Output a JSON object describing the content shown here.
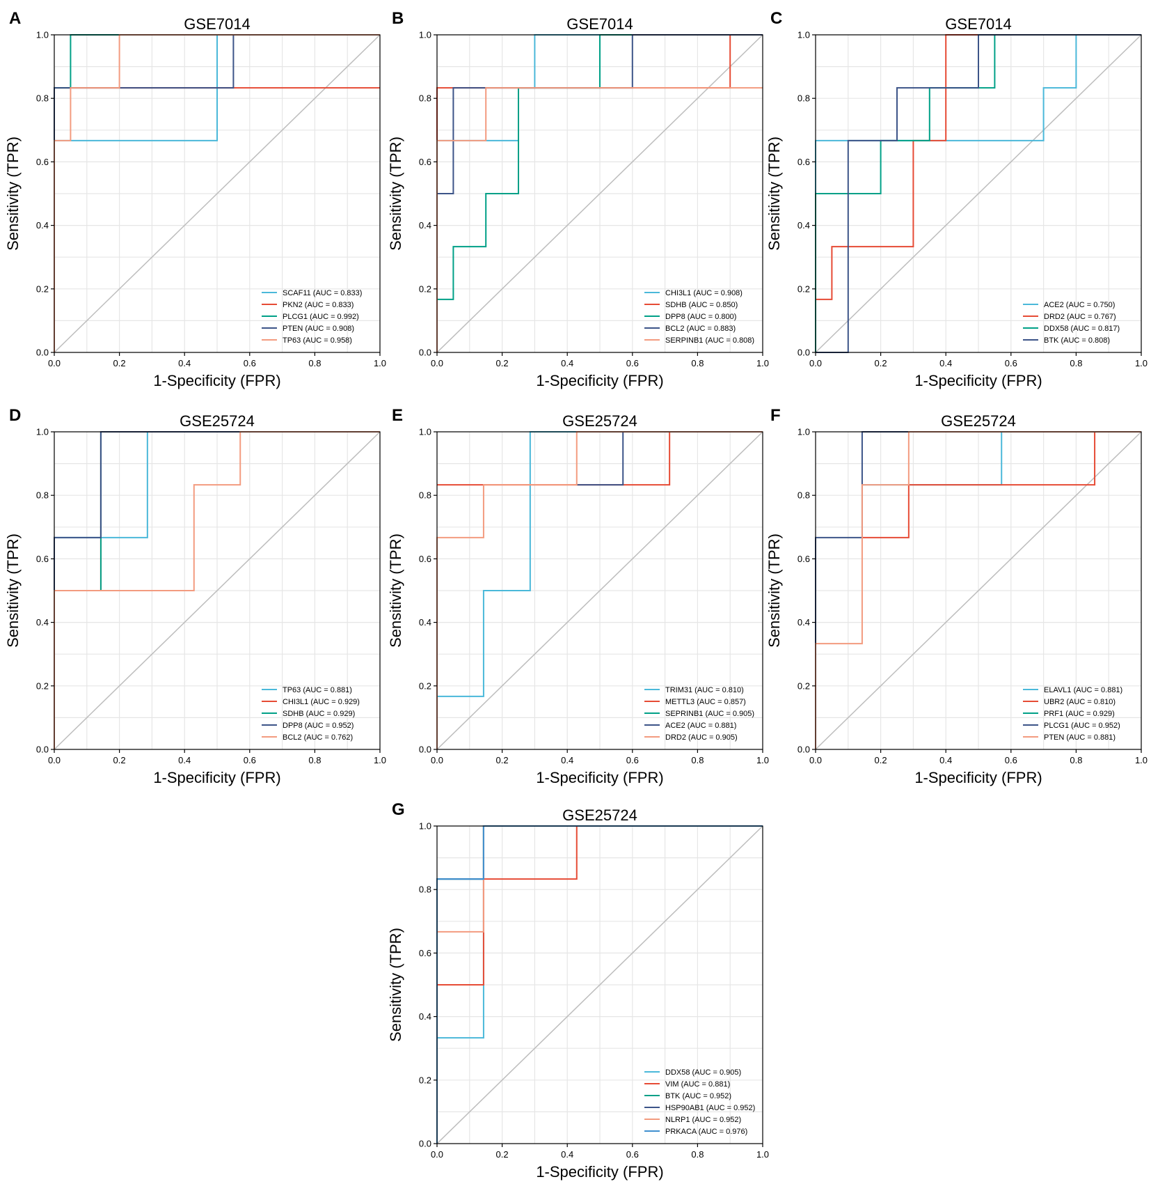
{
  "figure": {
    "panels_note": "ROC curves, 7 panels",
    "colors": {
      "grid": "#e6e6e6",
      "diagonal": "#bdbdbd",
      "frame": "#000000"
    }
  },
  "chart_data": [
    {
      "letter": "A",
      "type": "line",
      "title": "GSE7014",
      "xlabel": "1-Specificity (FPR)",
      "ylabel": "Sensitivity (TPR)",
      "xlim": [
        0,
        1
      ],
      "ylim": [
        0,
        1
      ],
      "xticks": [
        "0.0",
        "0.2",
        "0.4",
        "0.6",
        "0.8",
        "1.0"
      ],
      "yticks": [
        "0.0",
        "0.2",
        "0.4",
        "0.6",
        "0.8",
        "1.0"
      ],
      "grid": true,
      "legend_position": "bottom-right",
      "series": [
        {
          "name": "SCAF11",
          "label": "SCAF11 (AUC = 0.833)",
          "color": "#4ab8d9",
          "x": [
            0,
            0,
            0.5,
            0.5,
            1
          ],
          "y": [
            0,
            0.667,
            0.667,
            1,
            1
          ]
        },
        {
          "name": "PKN2",
          "label": "PKN2 (AUC = 0.833)",
          "color": "#e64b35",
          "x": [
            0,
            0,
            1
          ],
          "y": [
            0,
            0.833,
            0.833
          ]
        },
        {
          "name": "PLCG1",
          "label": "PLCG1 (AUC = 0.992)",
          "color": "#00a087",
          "x": [
            0,
            0,
            0.05,
            0.05,
            1
          ],
          "y": [
            0,
            0.833,
            0.833,
            1,
            1
          ]
        },
        {
          "name": "PTEN",
          "label": "PTEN (AUC = 0.908)",
          "color": "#3c5488",
          "x": [
            0,
            0,
            0.55,
            0.55,
            1
          ],
          "y": [
            0,
            0.833,
            0.833,
            1,
            1
          ]
        },
        {
          "name": "TP63",
          "label": "TP63 (AUC = 0.958)",
          "color": "#f39b7f",
          "x": [
            0,
            0,
            0.05,
            0.05,
            0.2,
            0.2,
            1
          ],
          "y": [
            0,
            0.667,
            0.667,
            0.833,
            0.833,
            1,
            1
          ]
        }
      ]
    },
    {
      "letter": "B",
      "type": "line",
      "title": "GSE7014",
      "xlabel": "1-Specificity (FPR)",
      "ylabel": "Sensitivity (TPR)",
      "xlim": [
        0,
        1
      ],
      "ylim": [
        0,
        1
      ],
      "xticks": [
        "0.0",
        "0.2",
        "0.4",
        "0.6",
        "0.8",
        "1.0"
      ],
      "yticks": [
        "0.0",
        "0.2",
        "0.4",
        "0.6",
        "0.8",
        "1.0"
      ],
      "grid": true,
      "legend_position": "bottom-right",
      "series": [
        {
          "name": "CHI3L1",
          "label": "CHI3L1 (AUC = 0.908)",
          "color": "#4ab8d9",
          "x": [
            0,
            0,
            0.15,
            0.15,
            0.25,
            0.25,
            0.3,
            0.3,
            1
          ],
          "y": [
            0,
            0.667,
            0.667,
            0.667,
            0.667,
            0.833,
            0.833,
            1,
            1
          ]
        },
        {
          "name": "SDHB",
          "label": "SDHB (AUC = 0.850)",
          "color": "#e64b35",
          "x": [
            0,
            0,
            0.9,
            0.9,
            1
          ],
          "y": [
            0,
            0.833,
            0.833,
            1,
            1
          ]
        },
        {
          "name": "DPP8",
          "label": "DPP8 (AUC = 0.800)",
          "color": "#00a087",
          "x": [
            0,
            0,
            0.05,
            0.05,
            0.15,
            0.15,
            0.25,
            0.25,
            0.5,
            0.5,
            1
          ],
          "y": [
            0,
            0.167,
            0.167,
            0.333,
            0.333,
            0.5,
            0.5,
            0.833,
            0.833,
            1,
            1
          ]
        },
        {
          "name": "BCL2",
          "label": "BCL2 (AUC = 0.883)",
          "color": "#3c5488",
          "x": [
            0,
            0,
            0.05,
            0.05,
            0.6,
            0.6,
            1
          ],
          "y": [
            0,
            0.5,
            0.5,
            0.833,
            0.833,
            1,
            1
          ]
        },
        {
          "name": "SERPINB1",
          "label": "SERPINB1 (AUC = 0.808)",
          "color": "#f39b7f",
          "x": [
            0,
            0,
            0.15,
            0.15,
            1
          ],
          "y": [
            0,
            0.667,
            0.667,
            0.833,
            0.833
          ]
        }
      ]
    },
    {
      "letter": "C",
      "type": "line",
      "title": "GSE7014",
      "xlabel": "1-Specificity (FPR)",
      "ylabel": "Sensitivity (TPR)",
      "xlim": [
        0,
        1
      ],
      "ylim": [
        0,
        1
      ],
      "xticks": [
        "0.0",
        "0.2",
        "0.4",
        "0.6",
        "0.8",
        "1.0"
      ],
      "yticks": [
        "0.0",
        "0.2",
        "0.4",
        "0.6",
        "0.8",
        "1.0"
      ],
      "grid": true,
      "legend_position": "bottom-right",
      "series": [
        {
          "name": "ACE2",
          "label": "ACE2 (AUC = 0.750)",
          "color": "#4ab8d9",
          "x": [
            0,
            0,
            0.7,
            0.7,
            0.8,
            0.8,
            1
          ],
          "y": [
            0,
            0.667,
            0.667,
            0.833,
            0.833,
            1,
            1
          ]
        },
        {
          "name": "DRD2",
          "label": "DRD2 (AUC = 0.767)",
          "color": "#e64b35",
          "x": [
            0,
            0,
            0.05,
            0.05,
            0.3,
            0.3,
            0.4,
            0.4,
            1
          ],
          "y": [
            0,
            0.167,
            0.167,
            0.333,
            0.333,
            0.667,
            0.667,
            1,
            1
          ]
        },
        {
          "name": "DDX58",
          "label": "DDX58 (AUC = 0.817)",
          "color": "#00a087",
          "x": [
            0,
            0,
            0.2,
            0.2,
            0.35,
            0.35,
            0.55,
            0.55,
            1
          ],
          "y": [
            0,
            0.5,
            0.5,
            0.667,
            0.667,
            0.833,
            0.833,
            1,
            1
          ]
        },
        {
          "name": "BTK",
          "label": "BTK (AUC = 0.808)",
          "color": "#3c5488",
          "x": [
            0,
            0.1,
            0.1,
            0.25,
            0.25,
            0.5,
            0.5,
            1
          ],
          "y": [
            0,
            0,
            0.667,
            0.667,
            0.833,
            0.833,
            1,
            1
          ]
        }
      ]
    },
    {
      "letter": "D",
      "type": "line",
      "title": "GSE25724",
      "xlabel": "1-Specificity (FPR)",
      "ylabel": "Sensitivity (TPR)",
      "xlim": [
        0,
        1
      ],
      "ylim": [
        0,
        1
      ],
      "xticks": [
        "0.0",
        "0.2",
        "0.4",
        "0.6",
        "0.8",
        "1.0"
      ],
      "yticks": [
        "0.0",
        "0.2",
        "0.4",
        "0.6",
        "0.8",
        "1.0"
      ],
      "grid": true,
      "legend_position": "bottom-right",
      "series": [
        {
          "name": "TP63",
          "label": "TP63 (AUC = 0.881)",
          "color": "#4ab8d9",
          "x": [
            0,
            0,
            0.286,
            0.286,
            1
          ],
          "y": [
            0,
            0.667,
            0.667,
            1,
            1
          ]
        },
        {
          "name": "CHI3L1",
          "label": "CHI3L1 (AUC = 0.929)",
          "color": "#e64b35",
          "x": [
            0,
            0,
            0.143,
            0.143,
            1
          ],
          "y": [
            0,
            0.5,
            0.5,
            1,
            1
          ]
        },
        {
          "name": "SDHB",
          "label": "SDHB (AUC = 0.929)",
          "color": "#00a087",
          "x": [
            0,
            0,
            0.143,
            0.143,
            1
          ],
          "y": [
            0,
            0.5,
            0.5,
            1,
            1
          ]
        },
        {
          "name": "DPP8",
          "label": "DPP8 (AUC = 0.952)",
          "color": "#3c5488",
          "x": [
            0,
            0,
            0.143,
            0.143,
            1
          ],
          "y": [
            0,
            0.667,
            0.667,
            1,
            1
          ]
        },
        {
          "name": "BCL2",
          "label": "BCL2 (AUC = 0.762)",
          "color": "#f39b7f",
          "x": [
            0,
            0,
            0.429,
            0.429,
            0.571,
            0.571,
            1
          ],
          "y": [
            0,
            0.5,
            0.5,
            0.833,
            0.833,
            1,
            1
          ]
        }
      ]
    },
    {
      "letter": "E",
      "type": "line",
      "title": "GSE25724",
      "xlabel": "1-Specificity (FPR)",
      "ylabel": "Sensitivity (TPR)",
      "xlim": [
        0,
        1
      ],
      "ylim": [
        0,
        1
      ],
      "xticks": [
        "0.0",
        "0.2",
        "0.4",
        "0.6",
        "0.8",
        "1.0"
      ],
      "yticks": [
        "0.0",
        "0.2",
        "0.4",
        "0.6",
        "0.8",
        "1.0"
      ],
      "grid": true,
      "legend_position": "bottom-right",
      "series": [
        {
          "name": "TRIM31",
          "label": "TRIM31 (AUC = 0.810)",
          "color": "#4ab8d9",
          "x": [
            0,
            0,
            0.143,
            0.143,
            0.286,
            0.286,
            1
          ],
          "y": [
            0,
            0.167,
            0.167,
            0.5,
            0.5,
            1,
            1
          ]
        },
        {
          "name": "METTL3",
          "label": "METTL3 (AUC = 0.857)",
          "color": "#e64b35",
          "x": [
            0,
            0.429,
            0.429,
            0.714,
            0.714,
            1
          ],
          "y": [
            0.833,
            0.833,
            0.833,
            0.833,
            1,
            1
          ]
        },
        {
          "name": "SEPRINB1",
          "label": "SEPRINB1 (AUC = 0.905)",
          "color": "#00a087",
          "x": [
            0.429,
            1
          ],
          "y": [
            1,
            1
          ]
        },
        {
          "name": "ACE2",
          "label": "ACE2 (AUC = 0.881)",
          "color": "#3c5488",
          "x": [
            0.429,
            0.571,
            0.571,
            1
          ],
          "y": [
            0.833,
            0.833,
            1,
            1
          ]
        },
        {
          "name": "DRD2",
          "label": "DRD2 (AUC = 0.905)",
          "color": "#f39b7f",
          "x": [
            0,
            0,
            0.143,
            0.143,
            0.429,
            0.429,
            1
          ],
          "y": [
            0,
            0.667,
            0.667,
            0.833,
            0.833,
            1,
            1
          ]
        }
      ]
    },
    {
      "letter": "F",
      "type": "line",
      "title": "GSE25724",
      "xlabel": "1-Specificity (FPR)",
      "ylabel": "Sensitivity (TPR)",
      "xlim": [
        0,
        1
      ],
      "ylim": [
        0,
        1
      ],
      "xticks": [
        "0.0",
        "0.2",
        "0.4",
        "0.6",
        "0.8",
        "1.0"
      ],
      "yticks": [
        "0.0",
        "0.2",
        "0.4",
        "0.6",
        "0.8",
        "1.0"
      ],
      "grid": true,
      "legend_position": "bottom-right",
      "series": [
        {
          "name": "ELAVL1",
          "label": "ELAVL1 (AUC = 0.881)",
          "color": "#4ab8d9",
          "x": [
            0.143,
            0.571,
            0.571,
            1
          ],
          "y": [
            0.833,
            0.833,
            1,
            1
          ]
        },
        {
          "name": "UBR2",
          "label": "UBR2 (AUC = 0.810)",
          "color": "#e64b35",
          "x": [
            0.143,
            0.286,
            0.286,
            0.857,
            0.857,
            1
          ],
          "y": [
            0.667,
            0.667,
            0.833,
            0.833,
            1,
            1
          ]
        },
        {
          "name": "PRF1",
          "label": "PRF1 (AUC = 0.929)",
          "color": "#00a087",
          "x": [
            0.857,
            1
          ],
          "y": [
            1,
            1
          ]
        },
        {
          "name": "PLCG1",
          "label": "PLCG1 (AUC = 0.952)",
          "color": "#3c5488",
          "x": [
            0,
            0,
            0.143,
            0.143,
            1
          ],
          "y": [
            0.333,
            0.667,
            0.667,
            1,
            1
          ]
        },
        {
          "name": "PTEN",
          "label": "PTEN (AUC = 0.881)",
          "color": "#f39b7f",
          "x": [
            0,
            0,
            0.143,
            0.143,
            0.286,
            0.286,
            1
          ],
          "y": [
            0,
            0.333,
            0.333,
            0.833,
            0.833,
            1,
            1
          ]
        }
      ]
    },
    {
      "letter": "G",
      "type": "line",
      "title": "GSE25724",
      "xlabel": "1-Specificity (FPR)",
      "ylabel": "Sensitivity (TPR)",
      "xlim": [
        0,
        1
      ],
      "ylim": [
        0,
        1
      ],
      "xticks": [
        "0.0",
        "0.2",
        "0.4",
        "0.6",
        "0.8",
        "1.0"
      ],
      "yticks": [
        "0.0",
        "0.2",
        "0.4",
        "0.6",
        "0.8",
        "1.0"
      ],
      "grid": true,
      "legend_position": "bottom-right",
      "series": [
        {
          "name": "DDX58",
          "label": "DDX58 (AUC = 0.905)",
          "color": "#4ab8d9",
          "x": [
            0,
            0,
            0.143,
            0.143,
            1
          ],
          "y": [
            0,
            0.333,
            0.333,
            1,
            1
          ]
        },
        {
          "name": "VIM",
          "label": "VIM (AUC = 0.881)",
          "color": "#e64b35",
          "x": [
            0,
            0,
            0.143,
            0.143,
            0.429,
            0.429,
            1
          ],
          "y": [
            0,
            0.5,
            0.5,
            0.833,
            0.833,
            1,
            1
          ]
        },
        {
          "name": "BTK",
          "label": "BTK (AUC = 0.952)",
          "color": "#00a087",
          "x": [
            0,
            0,
            0.143,
            0.143,
            1
          ],
          "y": [
            0,
            0.833,
            0.833,
            1,
            1
          ]
        },
        {
          "name": "HSP90AB1",
          "label": "HSP90AB1 (AUC = 0.952)",
          "color": "#3c5488",
          "x": [
            0,
            0,
            0.143,
            0.143,
            1
          ],
          "y": [
            0,
            0.833,
            0.833,
            1,
            1
          ]
        },
        {
          "name": "NLRP1",
          "label": "NLRP1 (AUC = 0.952)",
          "color": "#f39b7f",
          "x": [
            0,
            0,
            0.143,
            0.143,
            1
          ],
          "y": [
            0,
            0.667,
            0.667,
            1,
            1
          ]
        },
        {
          "name": "PRKACA",
          "label": "PRKACA (AUC = 0.976)",
          "color": "#3f8fcf",
          "x": [
            0,
            0,
            0.143,
            0.143,
            1
          ],
          "y": [
            0,
            0.833,
            0.833,
            1,
            1
          ]
        }
      ]
    }
  ]
}
